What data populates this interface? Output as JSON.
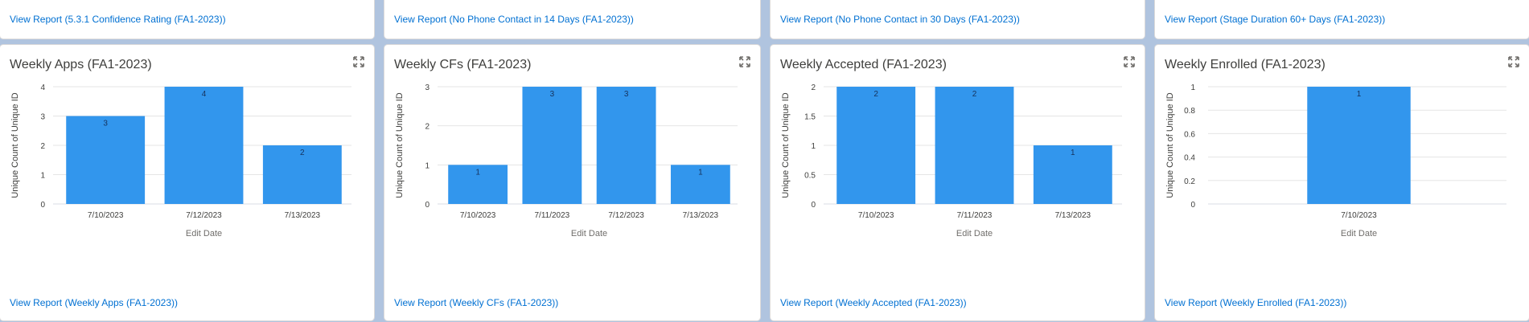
{
  "top_row": {
    "links": [
      "View Report (5.3.1 Confidence Rating (FA1-2023))",
      "View Report (No Phone Contact in 14 Days (FA1-2023))",
      "View Report (No Phone Contact in 30 Days (FA1-2023))",
      "View Report (Stage Duration 60+ Days (FA1-2023))"
    ],
    "legend_colors": [
      "#1b96ff",
      "#7fb6ec",
      "#2e2e2e",
      "#9a50e6",
      "#c8a8f0"
    ]
  },
  "bar_color": "#3296ed",
  "cards": [
    {
      "title": "Weekly Apps (FA1-2023)",
      "link": "View Report (Weekly Apps (FA1-2023))",
      "chart_data": {
        "type": "bar",
        "categories": [
          "7/10/2023",
          "7/12/2023",
          "7/13/2023"
        ],
        "values": [
          3,
          4,
          2
        ],
        "yticks": [
          "0",
          "1",
          "2",
          "3",
          "4"
        ],
        "ylim": [
          0,
          4
        ],
        "xlabel": "Edit Date",
        "ylabel": "Unique Count of Unique ID"
      }
    },
    {
      "title": "Weekly CFs (FA1-2023)",
      "link": "View Report (Weekly CFs (FA1-2023))",
      "chart_data": {
        "type": "bar",
        "categories": [
          "7/10/2023",
          "7/11/2023",
          "7/12/2023",
          "7/13/2023"
        ],
        "values": [
          1,
          3,
          3,
          1
        ],
        "yticks": [
          "0",
          "1",
          "2",
          "3"
        ],
        "ylim": [
          0,
          3
        ],
        "xlabel": "Edit Date",
        "ylabel": "Unique Count of Unique ID"
      }
    },
    {
      "title": "Weekly Accepted (FA1-2023)",
      "link": "View Report (Weekly Accepted (FA1-2023))",
      "chart_data": {
        "type": "bar",
        "categories": [
          "7/10/2023",
          "7/11/2023",
          "7/13/2023"
        ],
        "values": [
          2,
          2,
          1
        ],
        "yticks": [
          "0",
          "0.5",
          "1",
          "1.5",
          "2"
        ],
        "ylim": [
          0,
          2
        ],
        "xlabel": "Edit Date",
        "ylabel": "Unique Count of Unique ID"
      }
    },
    {
      "title": "Weekly Enrolled (FA1-2023)",
      "link": "View Report (Weekly Enrolled (FA1-2023))",
      "chart_data": {
        "type": "bar",
        "categories": [
          "7/10/2023"
        ],
        "values": [
          1
        ],
        "yticks": [
          "0",
          "0.2",
          "0.4",
          "0.6",
          "0.8",
          "1"
        ],
        "ylim": [
          0,
          1
        ],
        "xlabel": "Edit Date",
        "ylabel": "Unique Count of Unique ID"
      }
    }
  ]
}
